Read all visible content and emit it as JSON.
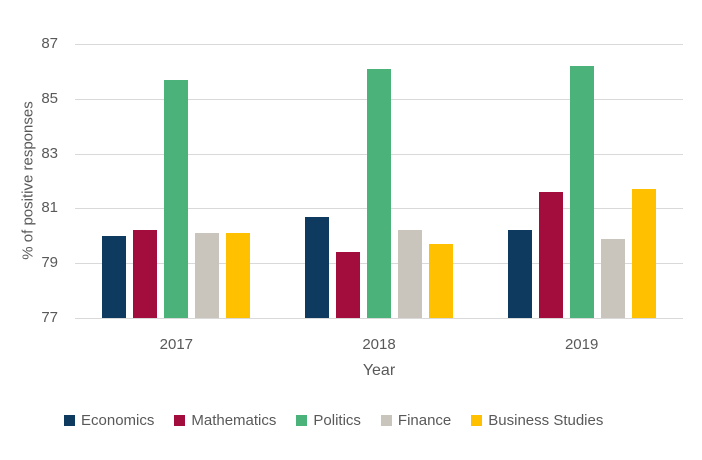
{
  "chart_data": {
    "type": "bar",
    "title": "",
    "categories": [
      "2017",
      "2018",
      "2019"
    ],
    "series": [
      {
        "name": "Economics",
        "color": "#0f3a5f",
        "values": [
          80.0,
          80.7,
          80.2
        ]
      },
      {
        "name": "Mathematics",
        "color": "#a30d3e",
        "values": [
          80.2,
          79.4,
          81.6
        ]
      },
      {
        "name": "Politics",
        "color": "#4bb27a",
        "values": [
          85.7,
          86.1,
          86.2
        ]
      },
      {
        "name": "Finance",
        "color": "#c9c4bc",
        "values": [
          80.1,
          80.2,
          79.9
        ]
      },
      {
        "name": "Business Studies",
        "color": "#ffc000",
        "values": [
          80.1,
          79.7,
          81.7
        ]
      }
    ],
    "xlabel": "Year",
    "ylabel": "% of positive responses",
    "ylim": [
      77,
      87
    ],
    "yticks": [
      77,
      79,
      81,
      83,
      85,
      87
    ],
    "grid": true,
    "legend_position": "bottom",
    "gridline_color": "#d9d9d9",
    "text_color": "#595959",
    "background_color": "#ffffff"
  }
}
